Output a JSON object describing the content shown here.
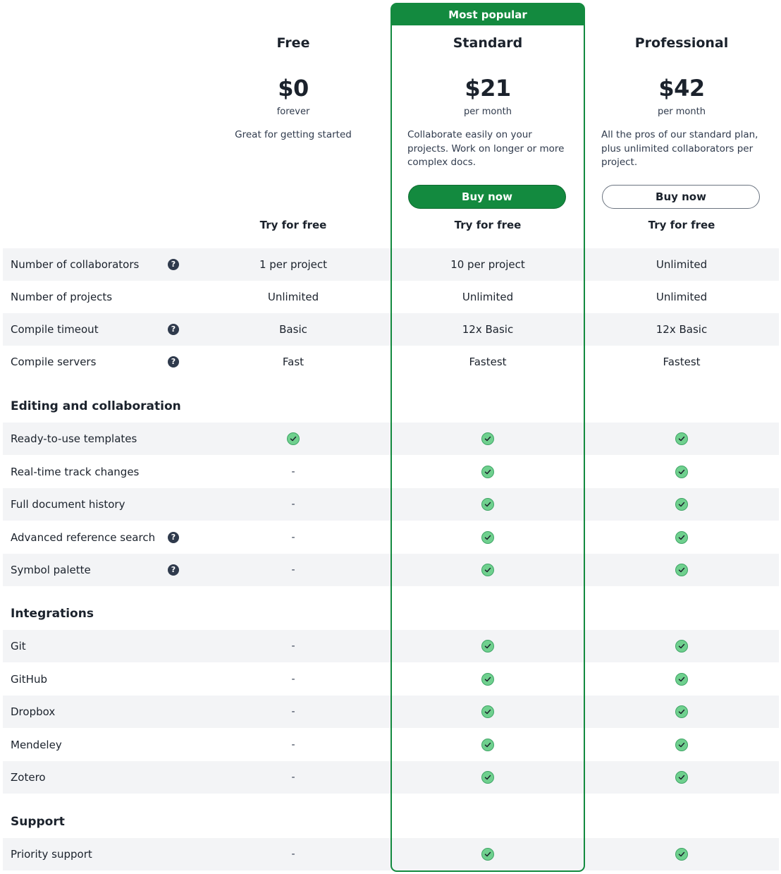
{
  "highlight": {
    "label": "Most popular"
  },
  "plans": [
    {
      "name": "Free",
      "price": "$0",
      "period": "forever",
      "description": "Great for getting started",
      "buy_label": "",
      "try_label": "Try for free"
    },
    {
      "name": "Standard",
      "price": "$21",
      "period": "per month",
      "description": "Collaborate easily on your projects. Work on longer or more complex docs.",
      "buy_label": "Buy now",
      "try_label": "Try for free"
    },
    {
      "name": "Professional",
      "price": "$42",
      "period": "per month",
      "description": "All the pros of our standard plan, plus unlimited collaborators per project.",
      "buy_label": "Buy now",
      "try_label": "Try for free"
    }
  ],
  "help_glyph": "?",
  "dash_glyph": "-",
  "general_rows": [
    {
      "label": "Number of collaborators",
      "help": true,
      "values": [
        "1 per project",
        "10 per project",
        "Unlimited"
      ]
    },
    {
      "label": "Number of projects",
      "help": false,
      "values": [
        "Unlimited",
        "Unlimited",
        "Unlimited"
      ]
    },
    {
      "label": "Compile timeout",
      "help": true,
      "values": [
        "Basic",
        "12x Basic",
        "12x Basic"
      ]
    },
    {
      "label": "Compile servers",
      "help": true,
      "values": [
        "Fast",
        "Fastest",
        "Fastest"
      ]
    }
  ],
  "sections": [
    {
      "title": "Editing and collaboration",
      "rows": [
        {
          "label": "Ready-to-use templates",
          "help": false,
          "included": [
            true,
            true,
            true
          ]
        },
        {
          "label": "Real-time track changes",
          "help": false,
          "included": [
            false,
            true,
            true
          ]
        },
        {
          "label": "Full document history",
          "help": false,
          "included": [
            false,
            true,
            true
          ]
        },
        {
          "label": "Advanced reference search",
          "help": true,
          "included": [
            false,
            true,
            true
          ]
        },
        {
          "label": "Symbol palette",
          "help": true,
          "included": [
            false,
            true,
            true
          ]
        }
      ]
    },
    {
      "title": "Integrations",
      "rows": [
        {
          "label": "Git",
          "help": false,
          "included": [
            false,
            true,
            true
          ]
        },
        {
          "label": "GitHub",
          "help": false,
          "included": [
            false,
            true,
            true
          ]
        },
        {
          "label": "Dropbox",
          "help": false,
          "included": [
            false,
            true,
            true
          ]
        },
        {
          "label": "Mendeley",
          "help": false,
          "included": [
            false,
            true,
            true
          ]
        },
        {
          "label": "Zotero",
          "help": false,
          "included": [
            false,
            true,
            true
          ]
        }
      ]
    },
    {
      "title": "Support",
      "rows": [
        {
          "label": "Priority support",
          "help": false,
          "included": [
            false,
            true,
            true
          ]
        }
      ]
    }
  ],
  "colors": {
    "accent": "#138a3f",
    "check": "#6fd08e",
    "row_shade": "#f3f4f6"
  }
}
